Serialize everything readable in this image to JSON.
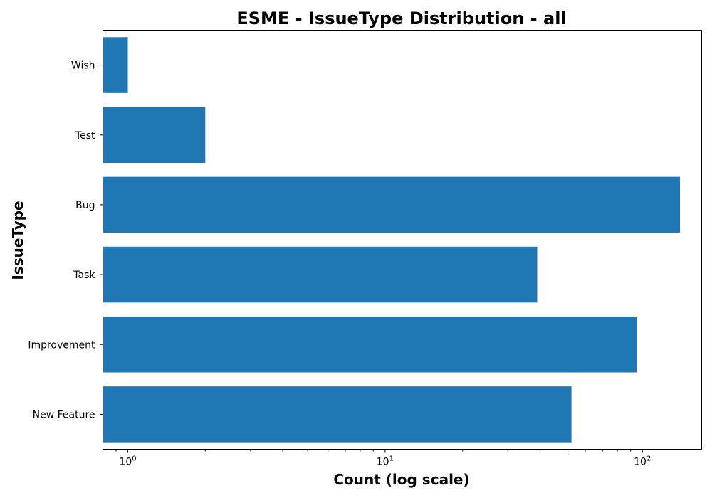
{
  "chart_data": {
    "type": "bar",
    "orientation": "horizontal",
    "title": "ESME - IssueType Distribution - all",
    "xlabel": "Count (log scale)",
    "ylabel": "IssueType",
    "x_scale": "log",
    "xlim": [
      0.8,
      170
    ],
    "x_ticks": [
      {
        "base": "10",
        "exp": "0",
        "value": 1
      },
      {
        "base": "10",
        "exp": "1",
        "value": 10
      },
      {
        "base": "10",
        "exp": "2",
        "value": 100
      }
    ],
    "categories": [
      "New Feature",
      "Improvement",
      "Task",
      "Bug",
      "Test",
      "Wish"
    ],
    "values": [
      53,
      95,
      39,
      140,
      2,
      1
    ],
    "bar_color": "#1f77b4",
    "grid": false,
    "legend": "none"
  }
}
